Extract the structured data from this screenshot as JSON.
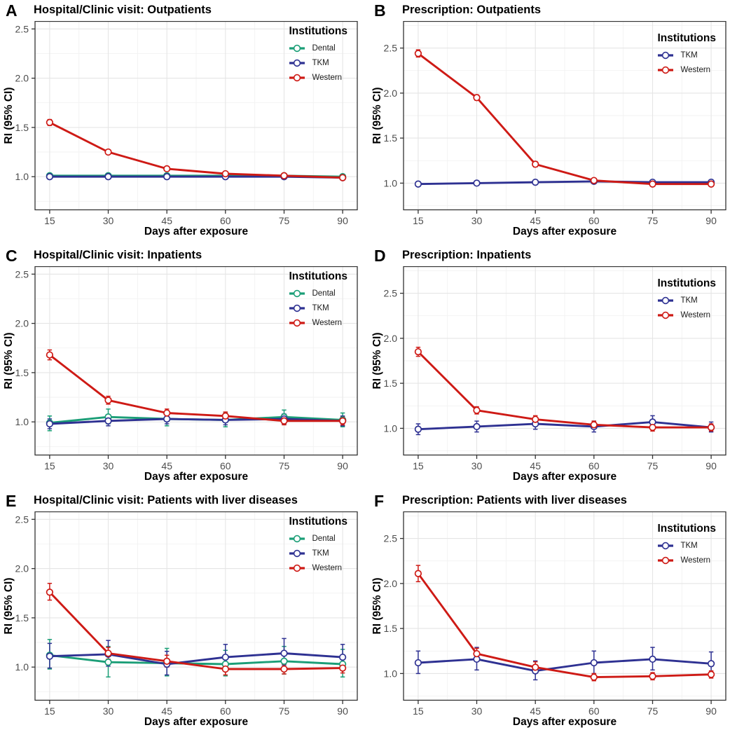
{
  "colors": {
    "Dental": "#1B9E77",
    "TKM": "#2E3192",
    "Western": "#CE1A15",
    "grid_major": "#E5E5E5",
    "grid_minor": "#F2F2F2",
    "panel_border": "#333333",
    "tick_mark": "#333333",
    "tick_text": "#4D4D4D",
    "title_text": "#000000",
    "point_fill": "#FFFFFF"
  },
  "chart_data": [
    {
      "type": "line",
      "letter": "A",
      "title": "Hospital/Clinic visit: Outpatients",
      "xlabel": "Days after exposure",
      "ylabel": "RI (95% CI)",
      "legend_title": "Institutions",
      "x": [
        15,
        30,
        45,
        60,
        75,
        90
      ],
      "xlim": [
        11.25,
        93.75
      ],
      "ylim": [
        0.66,
        2.58
      ],
      "xticks": [
        15,
        30,
        45,
        60,
        75,
        90
      ],
      "yticks": [
        1.0,
        1.5,
        2.0,
        2.5
      ],
      "ytick_labels": [
        "1.0",
        "1.5",
        "2.0",
        "2.5"
      ],
      "legend_position": "top-right",
      "series": [
        {
          "name": "Dental",
          "values": [
            1.01,
            1.01,
            1.01,
            1.01,
            1.01,
            1.0
          ],
          "ci_low": [
            1.0,
            1.0,
            1.0,
            1.0,
            0.99,
            0.98
          ],
          "ci_high": [
            1.02,
            1.02,
            1.02,
            1.02,
            1.03,
            1.02
          ]
        },
        {
          "name": "TKM",
          "values": [
            1.0,
            1.0,
            1.0,
            1.0,
            1.0,
            0.99
          ],
          "ci_low": [
            0.99,
            0.99,
            0.99,
            0.99,
            0.98,
            0.97
          ],
          "ci_high": [
            1.01,
            1.01,
            1.01,
            1.01,
            1.02,
            1.01
          ]
        },
        {
          "name": "Western",
          "values": [
            1.55,
            1.25,
            1.08,
            1.03,
            1.01,
            0.99
          ],
          "ci_low": [
            1.52,
            1.23,
            1.06,
            1.01,
            0.99,
            0.97
          ],
          "ci_high": [
            1.58,
            1.27,
            1.1,
            1.05,
            1.03,
            1.01
          ]
        }
      ]
    },
    {
      "type": "line",
      "letter": "B",
      "title": "Prescription: Outpatients",
      "xlabel": "Days after exposure",
      "ylabel": "RI (95% CI)",
      "legend_title": "Institutions",
      "x": [
        15,
        30,
        45,
        60,
        75,
        90
      ],
      "xlim": [
        11.25,
        93.75
      ],
      "ylim": [
        0.7,
        2.8
      ],
      "xticks": [
        15,
        30,
        45,
        60,
        75,
        90
      ],
      "yticks": [
        1.0,
        1.5,
        2.0,
        2.5
      ],
      "ytick_labels": [
        "1.0",
        "1.5",
        "2.0",
        "2.5"
      ],
      "legend_position": "top-right",
      "series": [
        {
          "name": "TKM",
          "values": [
            0.99,
            1.0,
            1.01,
            1.02,
            1.01,
            1.01
          ],
          "ci_low": [
            0.97,
            0.98,
            0.99,
            1.0,
            0.99,
            0.99
          ],
          "ci_high": [
            1.01,
            1.02,
            1.03,
            1.04,
            1.03,
            1.03
          ]
        },
        {
          "name": "Western",
          "values": [
            2.44,
            1.95,
            1.21,
            1.03,
            0.99,
            0.99
          ],
          "ci_low": [
            2.4,
            1.92,
            1.18,
            1.01,
            0.97,
            0.97
          ],
          "ci_high": [
            2.48,
            1.98,
            1.24,
            1.05,
            1.01,
            1.01
          ]
        }
      ]
    },
    {
      "type": "line",
      "letter": "C",
      "title": "Hospital/Clinic visit: Inpatients",
      "xlabel": "Days after exposure",
      "ylabel": "RI (95% CI)",
      "legend_title": "Institutions",
      "x": [
        15,
        30,
        45,
        60,
        75,
        90
      ],
      "xlim": [
        11.25,
        93.75
      ],
      "ylim": [
        0.66,
        2.58
      ],
      "xticks": [
        15,
        30,
        45,
        60,
        75,
        90
      ],
      "yticks": [
        1.0,
        1.5,
        2.0,
        2.5
      ],
      "ytick_labels": [
        "1.0",
        "1.5",
        "2.0",
        "2.5"
      ],
      "legend_position": "top-right",
      "series": [
        {
          "name": "Dental",
          "values": [
            0.99,
            1.05,
            1.03,
            1.02,
            1.05,
            1.02
          ],
          "ci_low": [
            0.91,
            0.98,
            0.96,
            0.95,
            0.98,
            0.95
          ],
          "ci_high": [
            1.06,
            1.13,
            1.1,
            1.09,
            1.12,
            1.09
          ]
        },
        {
          "name": "TKM",
          "values": [
            0.98,
            1.01,
            1.03,
            1.02,
            1.03,
            1.01
          ],
          "ci_low": [
            0.93,
            0.96,
            0.98,
            0.97,
            0.98,
            0.96
          ],
          "ci_high": [
            1.03,
            1.06,
            1.08,
            1.07,
            1.08,
            1.06
          ]
        },
        {
          "name": "Western",
          "values": [
            1.68,
            1.22,
            1.09,
            1.06,
            1.01,
            1.01
          ],
          "ci_low": [
            1.63,
            1.18,
            1.05,
            1.02,
            0.97,
            0.97
          ],
          "ci_high": [
            1.73,
            1.26,
            1.13,
            1.1,
            1.05,
            1.05
          ]
        }
      ]
    },
    {
      "type": "line",
      "letter": "D",
      "title": "Prescription: Inpatients",
      "xlabel": "Days after exposure",
      "ylabel": "RI (95% CI)",
      "legend_title": "Institutions",
      "x": [
        15,
        30,
        45,
        60,
        75,
        90
      ],
      "xlim": [
        11.25,
        93.75
      ],
      "ylim": [
        0.7,
        2.8
      ],
      "xticks": [
        15,
        30,
        45,
        60,
        75,
        90
      ],
      "yticks": [
        1.0,
        1.5,
        2.0,
        2.5
      ],
      "ytick_labels": [
        "1.0",
        "1.5",
        "2.0",
        "2.5"
      ],
      "legend_position": "top-right",
      "series": [
        {
          "name": "TKM",
          "values": [
            0.99,
            1.02,
            1.05,
            1.02,
            1.07,
            1.01
          ],
          "ci_low": [
            0.93,
            0.96,
            0.99,
            0.96,
            1.01,
            0.96
          ],
          "ci_high": [
            1.05,
            1.08,
            1.11,
            1.08,
            1.14,
            1.07
          ]
        },
        {
          "name": "Western",
          "values": [
            1.85,
            1.2,
            1.1,
            1.04,
            1.01,
            1.01
          ],
          "ci_low": [
            1.8,
            1.16,
            1.06,
            1.0,
            0.97,
            0.97
          ],
          "ci_high": [
            1.9,
            1.24,
            1.14,
            1.08,
            1.05,
            1.05
          ]
        }
      ]
    },
    {
      "type": "line",
      "letter": "E",
      "title": "Hospital/Clinic visit: Patients with liver diseases",
      "xlabel": "Days after exposure",
      "ylabel": "RI (95% CI)",
      "legend_title": "Institutions",
      "x": [
        15,
        30,
        45,
        60,
        75,
        90
      ],
      "xlim": [
        11.25,
        93.75
      ],
      "ylim": [
        0.66,
        2.58
      ],
      "xticks": [
        15,
        30,
        45,
        60,
        75,
        90
      ],
      "yticks": [
        1.0,
        1.5,
        2.0,
        2.5
      ],
      "ytick_labels": [
        "1.0",
        "1.5",
        "2.0",
        "2.5"
      ],
      "legend_position": "top-right",
      "series": [
        {
          "name": "Dental",
          "values": [
            1.12,
            1.05,
            1.04,
            1.03,
            1.06,
            1.03
          ],
          "ci_low": [
            0.98,
            0.9,
            0.91,
            0.91,
            0.93,
            0.9
          ],
          "ci_high": [
            1.28,
            1.21,
            1.19,
            1.17,
            1.21,
            1.18
          ]
        },
        {
          "name": "TKM",
          "values": [
            1.11,
            1.13,
            1.03,
            1.1,
            1.14,
            1.1
          ],
          "ci_low": [
            0.99,
            1.01,
            0.92,
            0.99,
            1.02,
            0.99
          ],
          "ci_high": [
            1.24,
            1.27,
            1.16,
            1.23,
            1.29,
            1.23
          ]
        },
        {
          "name": "Western",
          "values": [
            1.76,
            1.14,
            1.06,
            0.98,
            0.98,
            0.99
          ],
          "ci_low": [
            1.68,
            1.08,
            1.0,
            0.92,
            0.93,
            0.94
          ],
          "ci_high": [
            1.85,
            1.2,
            1.12,
            1.04,
            1.03,
            1.04
          ]
        }
      ]
    },
    {
      "type": "line",
      "letter": "F",
      "title": "Prescription: Patients with liver diseases",
      "xlabel": "Days after exposure",
      "ylabel": "RI (95% CI)",
      "legend_title": "Institutions",
      "x": [
        15,
        30,
        45,
        60,
        75,
        90
      ],
      "xlim": [
        11.25,
        93.75
      ],
      "ylim": [
        0.7,
        2.8
      ],
      "xticks": [
        15,
        30,
        45,
        60,
        75,
        90
      ],
      "yticks": [
        1.0,
        1.5,
        2.0,
        2.5
      ],
      "ytick_labels": [
        "1.0",
        "1.5",
        "2.0",
        "2.5"
      ],
      "legend_position": "top-right",
      "series": [
        {
          "name": "TKM",
          "values": [
            1.12,
            1.16,
            1.03,
            1.12,
            1.16,
            1.11
          ],
          "ci_low": [
            1.0,
            1.04,
            0.93,
            1.0,
            1.04,
            0.99
          ],
          "ci_high": [
            1.25,
            1.29,
            1.14,
            1.25,
            1.29,
            1.24
          ]
        },
        {
          "name": "Western",
          "values": [
            2.11,
            1.22,
            1.07,
            0.96,
            0.97,
            0.99
          ],
          "ci_low": [
            2.02,
            1.16,
            1.02,
            0.92,
            0.93,
            0.95
          ],
          "ci_high": [
            2.2,
            1.28,
            1.13,
            1.0,
            1.01,
            1.03
          ]
        }
      ]
    }
  ]
}
